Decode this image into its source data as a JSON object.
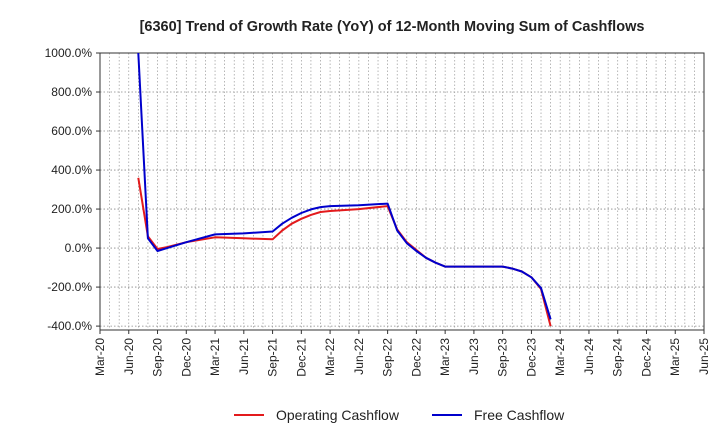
{
  "chart_data": {
    "type": "line",
    "title": "[6360]  Trend of Growth Rate (YoY) of 12-Month Moving Sum of Cashflows",
    "xlabel": "",
    "ylabel": "",
    "ylim": [
      -420,
      1000
    ],
    "y_ticks": [
      1000,
      800,
      600,
      400,
      200,
      0,
      -200,
      -400
    ],
    "y_tick_labels": [
      "1000.0%",
      "800.0%",
      "600.0%",
      "400.0%",
      "200.0%",
      "0.0%",
      "-200.0%",
      "-400.0%"
    ],
    "x_tick_labels": [
      "Mar-20",
      "Jun-20",
      "Sep-20",
      "Dec-20",
      "Mar-21",
      "Jun-21",
      "Sep-21",
      "Dec-21",
      "Mar-22",
      "Jun-22",
      "Sep-22",
      "Dec-22",
      "Mar-23",
      "Jun-23",
      "Sep-23",
      "Dec-23",
      "Mar-24",
      "Jun-24",
      "Sep-24",
      "Dec-24",
      "Mar-25",
      "Jun-25"
    ],
    "x_months": [
      "2020-03",
      "2020-04",
      "2020-05",
      "2020-06",
      "2020-07",
      "2020-08",
      "2020-09",
      "2020-10",
      "2020-11",
      "2020-12",
      "2021-01",
      "2021-02",
      "2021-03",
      "2021-04",
      "2021-05",
      "2021-06",
      "2021-07",
      "2021-08",
      "2021-09",
      "2021-10",
      "2021-11",
      "2021-12",
      "2022-01",
      "2022-02",
      "2022-03",
      "2022-04",
      "2022-05",
      "2022-06",
      "2022-07",
      "2022-08",
      "2022-09",
      "2022-10",
      "2022-11",
      "2022-12",
      "2023-01",
      "2023-02",
      "2023-03",
      "2023-04",
      "2023-05",
      "2023-06",
      "2023-07",
      "2023-08",
      "2023-09",
      "2023-10",
      "2023-11",
      "2023-12",
      "2024-01",
      "2024-02",
      "2024-03",
      "2024-04",
      "2024-05",
      "2024-06",
      "2024-07",
      "2024-08",
      "2024-09",
      "2024-10",
      "2024-11",
      "2024-12",
      "2025-01",
      "2025-02",
      "2025-03",
      "2025-04",
      "2025-05",
      "2025-06"
    ],
    "grid": true,
    "legend_position": "bottom",
    "series": [
      {
        "name": "Operating Cashflow",
        "color": "#e31a1c",
        "points": [
          [
            "2020-07",
            360
          ],
          [
            "2020-08",
            60
          ],
          [
            "2020-09",
            -5
          ],
          [
            "2020-10",
            5
          ],
          [
            "2020-12",
            30
          ],
          [
            "2021-03",
            55
          ],
          [
            "2021-06",
            50
          ],
          [
            "2021-09",
            45
          ],
          [
            "2021-10",
            90
          ],
          [
            "2021-11",
            125
          ],
          [
            "2021-12",
            150
          ],
          [
            "2022-01",
            170
          ],
          [
            "2022-02",
            185
          ],
          [
            "2022-03",
            190
          ],
          [
            "2022-06",
            200
          ],
          [
            "2022-09",
            215
          ],
          [
            "2022-10",
            95
          ],
          [
            "2022-11",
            30
          ],
          [
            "2022-12",
            -10
          ],
          [
            "2023-01",
            -50
          ],
          [
            "2023-02",
            -75
          ],
          [
            "2023-03",
            -95
          ],
          [
            "2023-06",
            -95
          ],
          [
            "2023-09",
            -95
          ],
          [
            "2023-10",
            -105
          ],
          [
            "2023-11",
            -120
          ],
          [
            "2023-12",
            -150
          ],
          [
            "2024-01",
            -210
          ],
          [
            "2024-02",
            -400
          ]
        ]
      },
      {
        "name": "Free Cashflow",
        "color": "#0000cc",
        "points": [
          [
            "2020-07",
            1000
          ],
          [
            "2020-08",
            50
          ],
          [
            "2020-09",
            -15
          ],
          [
            "2020-10",
            0
          ],
          [
            "2020-12",
            30
          ],
          [
            "2021-03",
            70
          ],
          [
            "2021-06",
            75
          ],
          [
            "2021-09",
            85
          ],
          [
            "2021-10",
            125
          ],
          [
            "2021-11",
            155
          ],
          [
            "2021-12",
            180
          ],
          [
            "2022-01",
            198
          ],
          [
            "2022-02",
            210
          ],
          [
            "2022-03",
            215
          ],
          [
            "2022-06",
            220
          ],
          [
            "2022-09",
            228
          ],
          [
            "2022-10",
            90
          ],
          [
            "2022-11",
            25
          ],
          [
            "2022-12",
            -15
          ],
          [
            "2023-01",
            -50
          ],
          [
            "2023-02",
            -75
          ],
          [
            "2023-03",
            -95
          ],
          [
            "2023-06",
            -95
          ],
          [
            "2023-09",
            -95
          ],
          [
            "2023-10",
            -105
          ],
          [
            "2023-11",
            -120
          ],
          [
            "2023-12",
            -150
          ],
          [
            "2024-01",
            -205
          ],
          [
            "2024-02",
            -365
          ]
        ]
      }
    ]
  }
}
